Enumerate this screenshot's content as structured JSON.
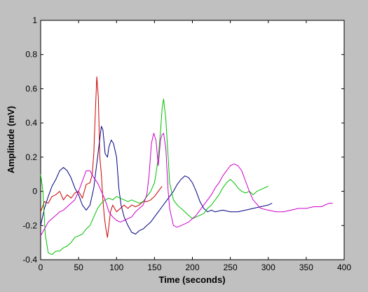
{
  "chart_data": {
    "type": "line",
    "title": "",
    "xlabel": "Time (seconds)",
    "ylabel": "Amplitude (mV)",
    "xlim": [
      0,
      400
    ],
    "ylim": [
      -0.4,
      1
    ],
    "xticks": [
      0,
      50,
      100,
      150,
      200,
      250,
      300,
      350,
      400
    ],
    "yticks": [
      -0.4,
      -0.2,
      0,
      0.2,
      0.4,
      0.6,
      0.8,
      1
    ],
    "grid": false,
    "legend": "none",
    "series": [
      {
        "color": "#cc0000",
        "x": [
          0,
          5,
          10,
          15,
          20,
          25,
          30,
          35,
          40,
          45,
          50,
          55,
          60,
          65,
          68,
          70,
          72,
          74,
          76,
          78,
          80,
          82,
          84,
          86,
          88,
          90,
          92,
          95,
          100,
          105,
          110,
          115,
          120,
          125,
          130,
          135,
          140,
          145,
          150,
          155,
          160
        ],
        "y": [
          -0.12,
          -0.06,
          -0.07,
          -0.03,
          -0.02,
          0.0,
          -0.05,
          -0.02,
          -0.04,
          -0.01,
          0.0,
          -0.04,
          0.04,
          0.05,
          0.1,
          0.22,
          0.45,
          0.67,
          0.55,
          0.2,
          0.1,
          -0.05,
          -0.15,
          -0.22,
          -0.27,
          -0.2,
          -0.12,
          -0.08,
          -0.12,
          -0.1,
          -0.08,
          -0.1,
          -0.08,
          -0.09,
          -0.08,
          -0.06,
          -0.06,
          -0.05,
          -0.03,
          0.0,
          0.03
        ]
      },
      {
        "color": "#000080",
        "x": [
          0,
          5,
          10,
          15,
          20,
          25,
          30,
          35,
          40,
          45,
          50,
          55,
          60,
          65,
          70,
          75,
          80,
          82,
          85,
          88,
          90,
          93,
          96,
          100,
          103,
          106,
          110,
          115,
          120,
          125,
          130,
          135,
          140,
          145,
          150,
          155,
          160,
          165,
          170,
          175,
          180,
          185,
          190,
          195,
          200,
          205,
          210,
          215,
          220,
          225,
          230,
          240,
          250,
          260,
          270,
          280,
          290,
          300,
          305
        ],
        "y": [
          -0.2,
          -0.1,
          -0.03,
          0.03,
          0.07,
          0.12,
          0.14,
          0.12,
          0.08,
          0.02,
          -0.02,
          -0.08,
          -0.11,
          -0.08,
          0.02,
          0.2,
          0.38,
          0.36,
          0.22,
          0.2,
          0.26,
          0.3,
          0.28,
          0.2,
          0.02,
          -0.08,
          -0.15,
          -0.2,
          -0.24,
          -0.25,
          -0.23,
          -0.22,
          -0.2,
          -0.18,
          -0.15,
          -0.12,
          -0.09,
          -0.06,
          -0.03,
          0.0,
          0.04,
          0.07,
          0.09,
          0.08,
          0.05,
          0.0,
          -0.06,
          -0.1,
          -0.12,
          -0.11,
          -0.12,
          -0.11,
          -0.12,
          -0.12,
          -0.11,
          -0.1,
          -0.09,
          -0.08,
          -0.07
        ]
      },
      {
        "color": "#00c000",
        "x": [
          0,
          3,
          6,
          10,
          15,
          20,
          25,
          30,
          35,
          40,
          45,
          50,
          55,
          60,
          65,
          70,
          75,
          80,
          85,
          90,
          95,
          100,
          105,
          110,
          115,
          120,
          125,
          130,
          135,
          140,
          145,
          150,
          152,
          155,
          158,
          160,
          162,
          165,
          168,
          170,
          175,
          180,
          185,
          190,
          195,
          200,
          205,
          210,
          215,
          220,
          225,
          230,
          235,
          240,
          245,
          250,
          255,
          260,
          265,
          270,
          275,
          280,
          285,
          290,
          295,
          300
        ],
        "y": [
          0.1,
          0.0,
          -0.25,
          -0.36,
          -0.37,
          -0.35,
          -0.35,
          -0.33,
          -0.32,
          -0.3,
          -0.27,
          -0.26,
          -0.25,
          -0.22,
          -0.2,
          -0.15,
          -0.1,
          -0.07,
          -0.05,
          -0.04,
          -0.05,
          -0.03,
          -0.04,
          -0.05,
          -0.06,
          -0.05,
          -0.06,
          -0.07,
          -0.06,
          -0.03,
          0.0,
          0.05,
          0.1,
          0.2,
          0.35,
          0.48,
          0.54,
          0.42,
          0.2,
          0.05,
          -0.05,
          -0.08,
          -0.1,
          -0.12,
          -0.14,
          -0.16,
          -0.15,
          -0.14,
          -0.13,
          -0.1,
          -0.08,
          -0.05,
          -0.02,
          0.02,
          0.05,
          0.07,
          0.05,
          0.02,
          0.0,
          -0.01,
          0.0,
          -0.02,
          0.0,
          0.01,
          0.02,
          0.03
        ]
      },
      {
        "color": "#cc00cc",
        "x": [
          0,
          5,
          10,
          15,
          20,
          25,
          30,
          35,
          40,
          45,
          50,
          55,
          60,
          65,
          70,
          75,
          80,
          85,
          90,
          95,
          100,
          105,
          110,
          115,
          120,
          125,
          130,
          135,
          140,
          143,
          146,
          149,
          152,
          155,
          158,
          160,
          162,
          165,
          168,
          170,
          175,
          180,
          185,
          190,
          195,
          200,
          205,
          210,
          215,
          220,
          225,
          230,
          235,
          240,
          245,
          250,
          255,
          260,
          265,
          270,
          275,
          280,
          290,
          300,
          310,
          320,
          330,
          340,
          350,
          360,
          370,
          380,
          385
        ],
        "y": [
          -0.26,
          -0.22,
          -0.18,
          -0.16,
          -0.14,
          -0.12,
          -0.11,
          -0.09,
          -0.07,
          -0.05,
          0.0,
          0.06,
          0.12,
          0.12,
          0.08,
          0.05,
          0.0,
          -0.05,
          -0.12,
          -0.15,
          -0.17,
          -0.18,
          -0.17,
          -0.16,
          -0.15,
          -0.12,
          -0.1,
          -0.08,
          -0.02,
          0.1,
          0.28,
          0.34,
          0.3,
          0.15,
          0.3,
          0.33,
          0.34,
          0.25,
          0.0,
          -0.1,
          -0.2,
          -0.21,
          -0.2,
          -0.19,
          -0.18,
          -0.16,
          -0.14,
          -0.11,
          -0.08,
          -0.05,
          -0.02,
          0.02,
          0.05,
          0.09,
          0.12,
          0.15,
          0.16,
          0.15,
          0.12,
          0.06,
          0.0,
          -0.05,
          -0.1,
          -0.11,
          -0.12,
          -0.12,
          -0.11,
          -0.1,
          -0.1,
          -0.09,
          -0.09,
          -0.07,
          -0.07
        ]
      }
    ]
  }
}
